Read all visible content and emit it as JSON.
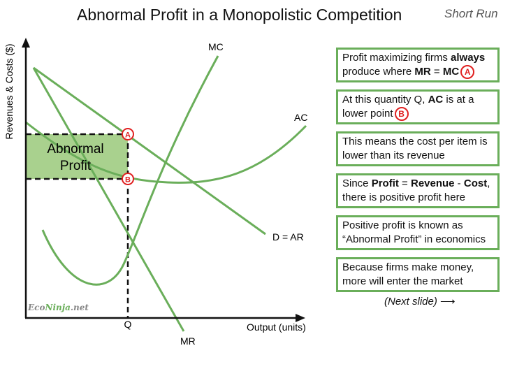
{
  "title": "Abnormal Profit in a Monopolistic Competition",
  "subtitle": "Short Run",
  "colors": {
    "curve": "#6aae5a",
    "profit_fill": "#a9d18e",
    "marker": "#e02020",
    "axis": "#111111"
  },
  "axes": {
    "y_label": "Revenues & Costs ($)",
    "x_label": "Output (units)",
    "q_label": "Q"
  },
  "curves": {
    "mc": "MC",
    "ac": "AC",
    "demand": "D = AR",
    "mr": "MR"
  },
  "profit_area": {
    "line1": "Abnormal",
    "line2": "Profit"
  },
  "markers": {
    "a": "A",
    "b": "B"
  },
  "watermark": {
    "part1": "Eco",
    "part2": "Ninja",
    "part3": ".net"
  },
  "boxes": [
    {
      "t1": "Profit maximizing firms ",
      "b1": "always",
      "t2": " produce where ",
      "b2": "MR",
      "t3": " = ",
      "b3": "MC",
      "badge": "A"
    },
    {
      "t1": "At this quantity Q, ",
      "b1": "AC",
      "t2": " is at a lower point",
      "badge": "B"
    },
    {
      "t1": "This means the cost per item is lower than its revenue"
    },
    {
      "t1": "Since ",
      "b1": "Profit",
      "t2": " = ",
      "b2": "Revenue",
      "t3": " - ",
      "b3": "Cost",
      "t4": ", there is positive profit here"
    },
    {
      "t1": "Positive profit is known as “Abnormal Profit” in economics"
    },
    {
      "t1": "Because firms make money, more will enter the market"
    }
  ],
  "next_slide": "(Next slide)",
  "next_arrow": "⟶"
}
